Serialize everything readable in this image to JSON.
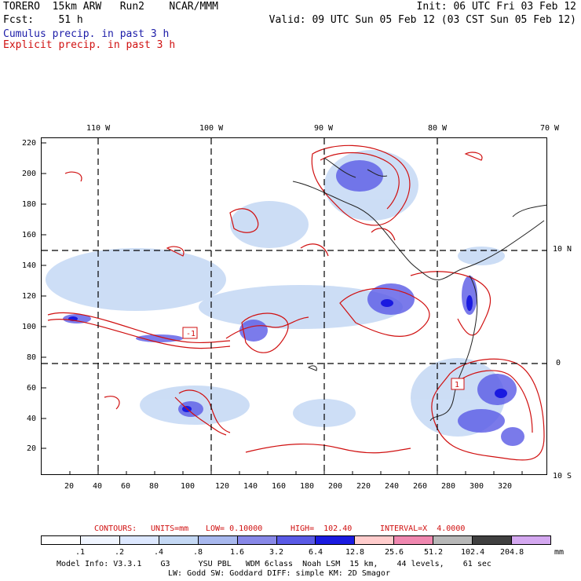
{
  "header": {
    "model_line": "TORERO  15km ARW   Run2    NCAR/MMM",
    "init_line": "Init: 06 UTC Fri 03 Feb 12",
    "fcst_line": "Fcst:    51 h",
    "valid_line": "Valid: 09 UTC Sun 05 Feb 12 (03 CST Sun 05 Feb 12)",
    "field1": "Cumulus precip. in past 3 h",
    "field2": "Explicit precip. in past 3 h"
  },
  "colors": {
    "field1": "#1c1ca8",
    "field2": "#d01010"
  },
  "axes": {
    "top_lon": [
      "110 W",
      "100 W",
      "90 W",
      "80 W",
      "70 W"
    ],
    "left_y": [
      "220",
      "200",
      "180",
      "160",
      "140",
      "120",
      "100",
      "80",
      "60",
      "40",
      "20"
    ],
    "bottom_x": [
      "20",
      "40",
      "60",
      "80",
      "100",
      "120",
      "140",
      "160",
      "180",
      "200",
      "220",
      "240",
      "260",
      "280",
      "300",
      "320"
    ],
    "right_lat": [
      "10 N",
      "0",
      "10 S"
    ]
  },
  "annotations": {
    "low_marker_1": "-1",
    "low_marker_2": "1"
  },
  "contours": {
    "label": "CONTOURS:",
    "units": "UNITS=mm",
    "low": "LOW= 0.10000",
    "high": "HIGH=  102.40",
    "interval": "INTERVAL=X  4.0000"
  },
  "colorbar": {
    "labels": [
      ".1",
      ".2",
      ".4",
      ".8",
      "1.6",
      "3.2",
      "6.4",
      "12.8",
      "25.6",
      "51.2",
      "102.4",
      "204.8"
    ],
    "unit": "mm",
    "colors": [
      "#ffffff",
      "#f0f5ff",
      "#dde8ff",
      "#c4d8f4",
      "#a8b8ee",
      "#8888e8",
      "#5a5ae6",
      "#1a1ae0",
      "#ffcccc",
      "#f088b0",
      "#b8b8b8",
      "#404040",
      "#d4a8f0"
    ]
  },
  "model_info": {
    "line1": "Model Info: V3.3.1    G3      YSU PBL   WDM 6class  Noah LSM  15 km,    44 levels,    61 sec",
    "line2": "LW: Godd SW: Goddard DIFF: simple KM: 2D Smagor"
  }
}
